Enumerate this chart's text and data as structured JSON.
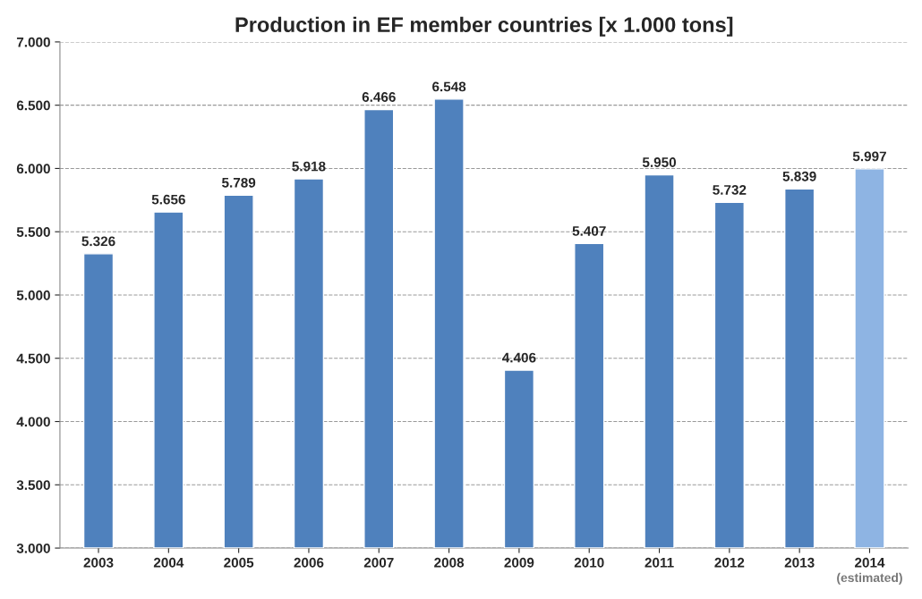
{
  "chart_data": {
    "type": "bar",
    "title": "Production in EF member countries [x 1.000 tons]",
    "categories": [
      "2003",
      "2004",
      "2005",
      "2006",
      "2007",
      "2008",
      "2009",
      "2010",
      "2011",
      "2012",
      "2013",
      "2014"
    ],
    "values": [
      5326,
      5656,
      5789,
      5918,
      6466,
      6548,
      4406,
      5407,
      5950,
      5732,
      5839,
      5997
    ],
    "colors": [
      "#4f81bd",
      "#4f81bd",
      "#4f81bd",
      "#4f81bd",
      "#4f81bd",
      "#4f81bd",
      "#4f81bd",
      "#4f81bd",
      "#4f81bd",
      "#4f81bd",
      "#4f81bd",
      "#8eb4e3"
    ],
    "value_labels": [
      "5.326",
      "5.656",
      "5.789",
      "5.918",
      "6.466",
      "6.548",
      "4.406",
      "5.407",
      "5.950",
      "5.732",
      "5.839",
      "5.997"
    ],
    "ylim": [
      3000,
      7000
    ],
    "yticks": [
      {
        "value": 3000,
        "label": "3.000"
      },
      {
        "value": 3500,
        "label": "3.500"
      },
      {
        "value": 4000,
        "label": "4.000"
      },
      {
        "value": 4500,
        "label": "4.500"
      },
      {
        "value": 5000,
        "label": "5.000"
      },
      {
        "value": 5500,
        "label": "5.500"
      },
      {
        "value": 6000,
        "label": "6.000"
      },
      {
        "value": 6500,
        "label": "6.500"
      },
      {
        "value": 7000,
        "label": "7.000"
      }
    ],
    "grid": "y",
    "annotations": [
      "(estimated)"
    ]
  }
}
